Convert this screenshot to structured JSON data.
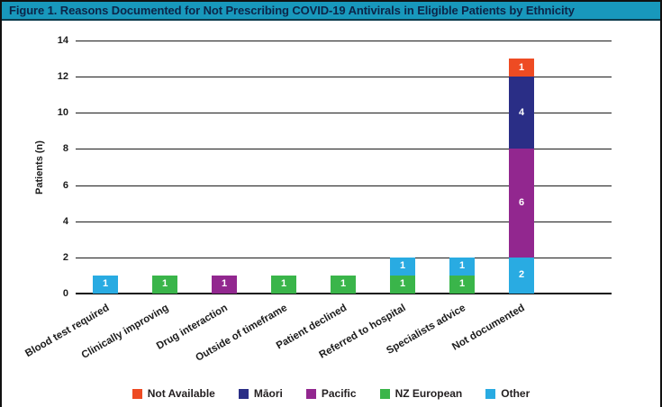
{
  "header": {
    "title": "Figure 1. Reasons Documented for Not Prescribing COVID-19 Antivirals in Eligible Patients by Ethnicity"
  },
  "colors": {
    "title_bar_bg": "#1898BC",
    "title_text": "#0C2548",
    "grid_line": "#1a1a1a",
    "baseline": "#111111",
    "axis_text": "#1c1c1c",
    "legend_text": "#231F20",
    "bar_value_text": "#ffffff"
  },
  "chart_data": {
    "type": "bar",
    "stacked": true,
    "title": "Figure 1. Reasons Documented for Not Prescribing COVID-19 Antivirals in Eligible Patients by Ethnicity",
    "xlabel": "",
    "ylabel": "Patients (n)",
    "ylim": [
      0,
      14
    ],
    "yticks": [
      0,
      2,
      4,
      6,
      8,
      10,
      12,
      14
    ],
    "grid": true,
    "legend_position": "bottom",
    "legend": [
      "Not Available",
      "Māori",
      "Pacific",
      "NZ European",
      "Other"
    ],
    "series": [
      {
        "name": "Not Available",
        "color": "#EE4B23",
        "values": [
          0,
          0,
          0,
          0,
          0,
          0,
          0,
          1
        ]
      },
      {
        "name": "Māori",
        "color": "#2A2E86",
        "values": [
          0,
          0,
          0,
          0,
          0,
          0,
          0,
          4
        ]
      },
      {
        "name": "Pacific",
        "color": "#92278F",
        "values": [
          0,
          0,
          1,
          0,
          0,
          0,
          0,
          6
        ]
      },
      {
        "name": "NZ European",
        "color": "#3AB54A",
        "values": [
          0,
          1,
          0,
          1,
          1,
          1,
          1,
          0
        ]
      },
      {
        "name": "Other",
        "color": "#29ABE2",
        "values": [
          1,
          0,
          0,
          0,
          0,
          1,
          1,
          2
        ]
      }
    ],
    "categories": [
      "Blood test required",
      "Clinically improving",
      "Drug interaction",
      "Outside of timeframe",
      "Patient declined",
      "Referred to hospital",
      "Specialists advice",
      "Not documented"
    ],
    "bars": [
      {
        "category": "Blood test required",
        "segments": [
          {
            "series": "Other",
            "value": 1
          }
        ]
      },
      {
        "category": "Clinically improving",
        "segments": [
          {
            "series": "NZ European",
            "value": 1
          }
        ]
      },
      {
        "category": "Drug interaction",
        "segments": [
          {
            "series": "Pacific",
            "value": 1
          }
        ]
      },
      {
        "category": "Outside of timeframe",
        "segments": [
          {
            "series": "NZ European",
            "value": 1
          }
        ]
      },
      {
        "category": "Patient declined",
        "segments": [
          {
            "series": "NZ European",
            "value": 1
          }
        ]
      },
      {
        "category": "Referred to hospital",
        "segments": [
          {
            "series": "NZ European",
            "value": 1
          },
          {
            "series": "Other",
            "value": 1
          }
        ]
      },
      {
        "category": "Specialists advice",
        "segments": [
          {
            "series": "NZ European",
            "value": 1
          },
          {
            "series": "Other",
            "value": 1
          }
        ]
      },
      {
        "category": "Not documented",
        "segments": [
          {
            "series": "Other",
            "value": 2
          },
          {
            "series": "Pacific",
            "value": 6
          },
          {
            "series": "Māori",
            "value": 4
          },
          {
            "series": "Not Available",
            "value": 1
          }
        ]
      }
    ]
  }
}
